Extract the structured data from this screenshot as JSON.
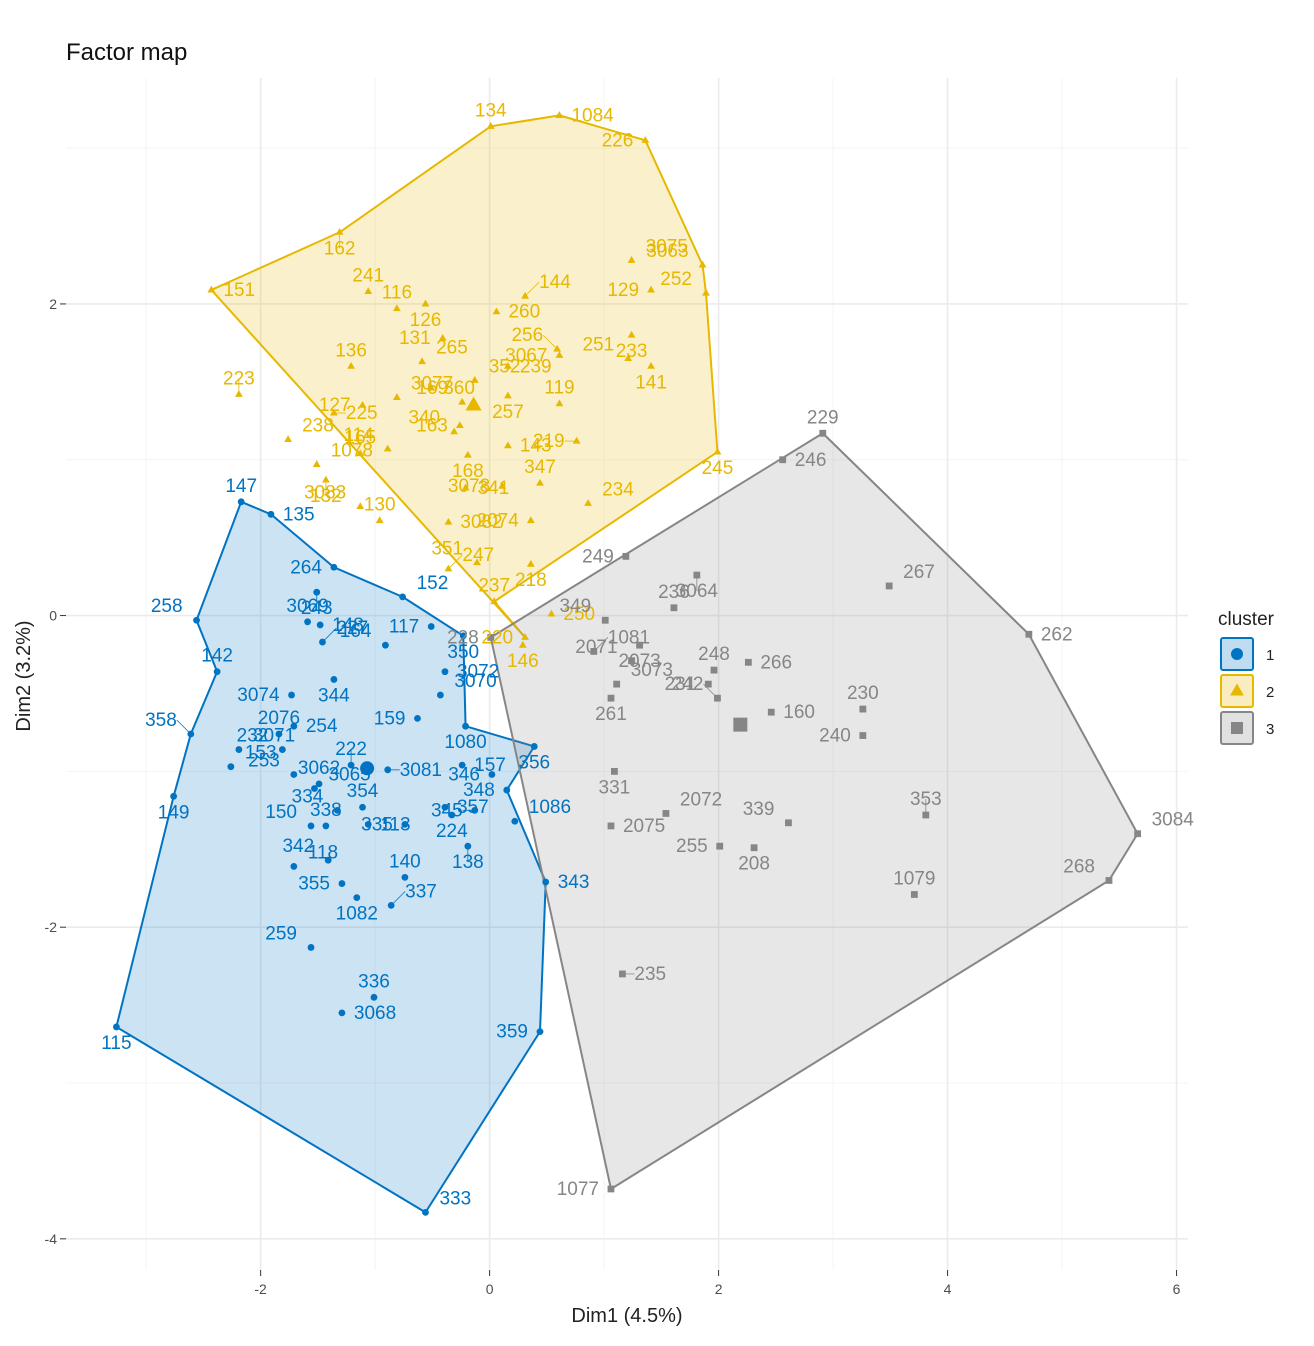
{
  "chart_data": {
    "type": "scatter",
    "title": "Factor map",
    "xlabel": "Dim1 (4.5%)",
    "ylabel": "Dim2 (3.2%)",
    "xlim": [
      -3.7,
      6.1
    ],
    "ylim": [
      -4.2,
      3.45
    ],
    "x_ticks": [
      -2,
      0,
      2,
      4,
      6
    ],
    "y_ticks": [
      -4,
      -2,
      0,
      2
    ],
    "grid": true,
    "legend": {
      "title": "cluster",
      "position": "right",
      "labels": [
        "1",
        "2",
        "3"
      ]
    },
    "colors": {
      "1": "#0073c2",
      "2": "#e7b800",
      "3": "#868686"
    },
    "series": [
      {
        "name": "1",
        "shape": "circle",
        "hull": [
          "147",
          "135",
          "264",
          "152",
          "350",
          "1080",
          "356",
          "348",
          "343",
          "359",
          "333",
          "115",
          "149",
          "358",
          "142",
          "258"
        ],
        "centroid": [
          -1.07,
          -0.98
        ],
        "points": [
          {
            "label": "147",
            "x": -2.17,
            "y": 0.73
          },
          {
            "label": "135",
            "x": -1.91,
            "y": 0.65
          },
          {
            "label": "264",
            "x": -1.36,
            "y": 0.31
          },
          {
            "label": "243",
            "x": -1.51,
            "y": 0.15
          },
          {
            "label": "152",
            "x": -0.76,
            "y": 0.12
          },
          {
            "label": "258",
            "x": -2.56,
            "y": -0.03
          },
          {
            "label": "3069",
            "x": -1.59,
            "y": -0.04
          },
          {
            "label": "148",
            "x": -1.48,
            "y": -0.06
          },
          {
            "label": "117",
            "x": -0.51,
            "y": -0.07
          },
          {
            "label": "350",
            "x": -0.23,
            "y": -0.13
          },
          {
            "label": "227",
            "x": -1.46,
            "y": -0.17
          },
          {
            "label": "164",
            "x": -0.91,
            "y": -0.19
          },
          {
            "label": "142",
            "x": -2.38,
            "y": -0.36
          },
          {
            "label": "3072",
            "x": -0.39,
            "y": -0.36
          },
          {
            "label": "3074",
            "x": -1.73,
            "y": -0.51
          },
          {
            "label": "344",
            "x": -1.36,
            "y": -0.41
          },
          {
            "label": "3070",
            "x": -0.43,
            "y": -0.51
          },
          {
            "label": "358",
            "x": -2.61,
            "y": -0.76
          },
          {
            "label": "2076",
            "x": -1.84,
            "y": -0.76
          },
          {
            "label": "254",
            "x": -1.71,
            "y": -0.71
          },
          {
            "label": "159",
            "x": -0.63,
            "y": -0.66
          },
          {
            "label": "1080",
            "x": -0.21,
            "y": -0.71
          },
          {
            "label": "3071",
            "x": -2.19,
            "y": -0.86
          },
          {
            "label": "232",
            "x": -1.81,
            "y": -0.86
          },
          {
            "label": "222",
            "x": -1.21,
            "y": -0.96
          },
          {
            "label": "157",
            "x": -0.24,
            "y": -0.96
          },
          {
            "label": "346",
            "x": 0.02,
            "y": -1.02
          },
          {
            "label": "356",
            "x": 0.39,
            "y": -0.84
          },
          {
            "label": "153",
            "x": -2.26,
            "y": -0.97
          },
          {
            "label": "253",
            "x": -1.71,
            "y": -1.02
          },
          {
            "label": "3062",
            "x": -1.49,
            "y": -1.08
          },
          {
            "label": "3081",
            "x": -0.89,
            "y": -0.99
          },
          {
            "label": "348",
            "x": 0.15,
            "y": -1.12
          },
          {
            "label": "149",
            "x": -2.76,
            "y": -1.16
          },
          {
            "label": "3065",
            "x": -1.53,
            "y": -1.11
          },
          {
            "label": "334",
            "x": -1.33,
            "y": -1.25
          },
          {
            "label": "354",
            "x": -1.11,
            "y": -1.23
          },
          {
            "label": "357",
            "x": -0.39,
            "y": -1.23
          },
          {
            "label": "345",
            "x": -0.13,
            "y": -1.25
          },
          {
            "label": "224",
            "x": -0.33,
            "y": -1.28
          },
          {
            "label": "1086",
            "x": 0.22,
            "y": -1.32
          },
          {
            "label": "150",
            "x": -1.56,
            "y": -1.35
          },
          {
            "label": "338",
            "x": -1.43,
            "y": -1.35
          },
          {
            "label": "113",
            "x": -1.06,
            "y": -1.34
          },
          {
            "label": "335",
            "x": -0.74,
            "y": -1.34
          },
          {
            "label": "138",
            "x": -0.19,
            "y": -1.48
          },
          {
            "label": "118",
            "x": -1.71,
            "y": -1.61
          },
          {
            "label": "342",
            "x": -1.41,
            "y": -1.57
          },
          {
            "label": "140",
            "x": -0.74,
            "y": -1.68
          },
          {
            "label": "343",
            "x": 0.49,
            "y": -1.71
          },
          {
            "label": "355",
            "x": -1.29,
            "y": -1.72
          },
          {
            "label": "1082",
            "x": -1.16,
            "y": -1.81
          },
          {
            "label": "337",
            "x": -0.86,
            "y": -1.86
          },
          {
            "label": "259",
            "x": -1.56,
            "y": -2.13
          },
          {
            "label": "336",
            "x": -1.01,
            "y": -2.45
          },
          {
            "label": "3068",
            "x": -1.29,
            "y": -2.55
          },
          {
            "label": "359",
            "x": 0.44,
            "y": -2.67
          },
          {
            "label": "115",
            "x": -3.26,
            "y": -2.64
          },
          {
            "label": "333",
            "x": -0.56,
            "y": -3.83
          }
        ]
      },
      {
        "name": "2",
        "shape": "triangle",
        "hull": [
          "162",
          "134",
          "1084",
          "226",
          "3063",
          "252",
          "245",
          "237",
          "220",
          "151"
        ],
        "centroid": [
          -0.14,
          1.35
        ],
        "points": [
          {
            "label": "134",
            "x": 0.01,
            "y": 3.14
          },
          {
            "label": "1084",
            "x": 0.61,
            "y": 3.21
          },
          {
            "label": "226",
            "x": 1.36,
            "y": 3.05
          },
          {
            "label": "162",
            "x": -1.31,
            "y": 2.46
          },
          {
            "label": "3075",
            "x": 1.24,
            "y": 2.28
          },
          {
            "label": "3063",
            "x": 1.86,
            "y": 2.25
          },
          {
            "label": "241",
            "x": -1.06,
            "y": 2.08
          },
          {
            "label": "151",
            "x": -2.43,
            "y": 2.09
          },
          {
            "label": "129",
            "x": 1.41,
            "y": 2.09
          },
          {
            "label": "126",
            "x": -0.56,
            "y": 2.0
          },
          {
            "label": "144",
            "x": 0.31,
            "y": 2.05
          },
          {
            "label": "252",
            "x": 1.89,
            "y": 2.07
          },
          {
            "label": "116",
            "x": -0.81,
            "y": 1.97
          },
          {
            "label": "260",
            "x": 0.06,
            "y": 1.95
          },
          {
            "label": "131",
            "x": -0.41,
            "y": 1.78
          },
          {
            "label": "233",
            "x": 1.24,
            "y": 1.8
          },
          {
            "label": "265",
            "x": -0.59,
            "y": 1.63
          },
          {
            "label": "256",
            "x": 0.59,
            "y": 1.71
          },
          {
            "label": "136",
            "x": -1.21,
            "y": 1.6
          },
          {
            "label": "239",
            "x": 0.16,
            "y": 1.6
          },
          {
            "label": "3067",
            "x": 0.61,
            "y": 1.67
          },
          {
            "label": "141",
            "x": 1.41,
            "y": 1.6
          },
          {
            "label": "352",
            "x": -0.13,
            "y": 1.51
          },
          {
            "label": "251",
            "x": 1.21,
            "y": 1.65
          },
          {
            "label": "223",
            "x": -2.19,
            "y": 1.42
          },
          {
            "label": "360",
            "x": -0.51,
            "y": 1.46
          },
          {
            "label": "127",
            "x": -1.11,
            "y": 1.35
          },
          {
            "label": "257",
            "x": 0.16,
            "y": 1.41
          },
          {
            "label": "3077",
            "x": -0.81,
            "y": 1.4
          },
          {
            "label": "169",
            "x": -0.24,
            "y": 1.37
          },
          {
            "label": "119",
            "x": 0.61,
            "y": 1.36
          },
          {
            "label": "225",
            "x": -1.36,
            "y": 1.3
          },
          {
            "label": "163",
            "x": -0.26,
            "y": 1.22
          },
          {
            "label": "245",
            "x": 1.99,
            "y": 1.05
          },
          {
            "label": "238",
            "x": -1.76,
            "y": 1.13
          },
          {
            "label": "340",
            "x": -0.31,
            "y": 1.18
          },
          {
            "label": "165",
            "x": -1.13,
            "y": 1.04
          },
          {
            "label": "143",
            "x": 0.16,
            "y": 1.09
          },
          {
            "label": "219",
            "x": 0.76,
            "y": 1.12
          },
          {
            "label": "168",
            "x": -0.19,
            "y": 1.03
          },
          {
            "label": "1078",
            "x": -1.51,
            "y": 0.97
          },
          {
            "label": "114",
            "x": -0.89,
            "y": 1.07
          },
          {
            "label": "347",
            "x": 0.44,
            "y": 0.85
          },
          {
            "label": "341",
            "x": -0.21,
            "y": 0.82
          },
          {
            "label": "3078",
            "x": 0.11,
            "y": 0.83
          },
          {
            "label": "132",
            "x": -1.43,
            "y": 0.87
          },
          {
            "label": "234",
            "x": 0.86,
            "y": 0.72
          },
          {
            "label": "3083",
            "x": -1.13,
            "y": 0.7
          },
          {
            "label": "130",
            "x": -0.96,
            "y": 0.61
          },
          {
            "label": "3082",
            "x": -0.36,
            "y": 0.6
          },
          {
            "label": "2074",
            "x": 0.36,
            "y": 0.61
          },
          {
            "label": "218",
            "x": 0.36,
            "y": 0.33
          },
          {
            "label": "247",
            "x": -0.36,
            "y": 0.3
          },
          {
            "label": "351",
            "x": -0.11,
            "y": 0.34
          },
          {
            "label": "237",
            "x": 0.04,
            "y": 0.09
          },
          {
            "label": "250",
            "x": 0.54,
            "y": 0.01
          },
          {
            "label": "220",
            "x": 0.31,
            "y": -0.14
          },
          {
            "label": "146",
            "x": 0.29,
            "y": -0.19
          }
        ]
      },
      {
        "name": "3",
        "shape": "square",
        "hull": [
          "229",
          "262",
          "3084",
          "268",
          "1077",
          "228"
        ],
        "centroid": [
          2.19,
          -0.7
        ],
        "points": [
          {
            "label": "229",
            "x": 2.91,
            "y": 1.17
          },
          {
            "label": "246",
            "x": 2.56,
            "y": 1.0
          },
          {
            "label": "249",
            "x": 1.19,
            "y": 0.38
          },
          {
            "label": "3064",
            "x": 1.81,
            "y": 0.26
          },
          {
            "label": "267",
            "x": 3.49,
            "y": 0.19
          },
          {
            "label": "349",
            "x": 1.01,
            "y": -0.03
          },
          {
            "label": "236",
            "x": 1.61,
            "y": 0.05
          },
          {
            "label": "262",
            "x": 4.71,
            "y": -0.12
          },
          {
            "label": "228",
            "x": 0.01,
            "y": -0.14
          },
          {
            "label": "2073",
            "x": 1.31,
            "y": -0.19
          },
          {
            "label": "1081",
            "x": 0.91,
            "y": -0.23
          },
          {
            "label": "2071",
            "x": 1.24,
            "y": -0.29
          },
          {
            "label": "248",
            "x": 1.96,
            "y": -0.35
          },
          {
            "label": "266",
            "x": 2.26,
            "y": -0.3
          },
          {
            "label": "231",
            "x": 1.91,
            "y": -0.44
          },
          {
            "label": "261",
            "x": 1.06,
            "y": -0.53
          },
          {
            "label": "3073",
            "x": 1.11,
            "y": -0.44
          },
          {
            "label": "242",
            "x": 1.99,
            "y": -0.53
          },
          {
            "label": "230",
            "x": 3.26,
            "y": -0.6
          },
          {
            "label": "160",
            "x": 2.46,
            "y": -0.62
          },
          {
            "label": "240",
            "x": 3.26,
            "y": -0.77
          },
          {
            "label": "331",
            "x": 1.09,
            "y": -1.0
          },
          {
            "label": "2072",
            "x": 1.54,
            "y": -1.27
          },
          {
            "label": "339",
            "x": 2.61,
            "y": -1.33
          },
          {
            "label": "353",
            "x": 3.81,
            "y": -1.28
          },
          {
            "label": "2075",
            "x": 1.06,
            "y": -1.35
          },
          {
            "label": "255",
            "x": 2.01,
            "y": -1.48
          },
          {
            "label": "208",
            "x": 2.31,
            "y": -1.49
          },
          {
            "label": "3084",
            "x": 5.66,
            "y": -1.4
          },
          {
            "label": "268",
            "x": 5.41,
            "y": -1.7
          },
          {
            "label": "1079",
            "x": 3.71,
            "y": -1.79
          },
          {
            "label": "235",
            "x": 1.16,
            "y": -2.3
          },
          {
            "label": "1077",
            "x": 1.06,
            "y": -3.68
          }
        ]
      }
    ]
  }
}
